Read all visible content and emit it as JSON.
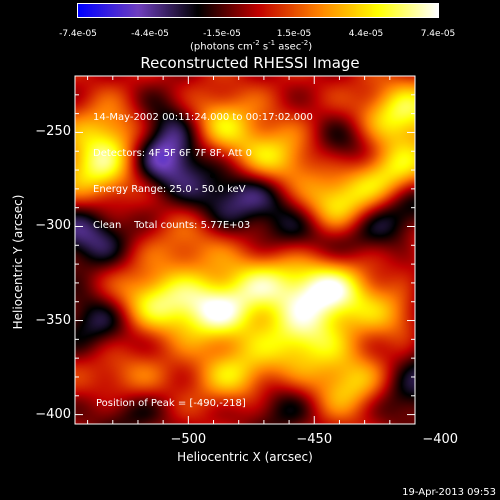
{
  "colorbar": {
    "tick_labels": [
      "-7.4e-05",
      "-4.4e-05",
      "-1.5e-05",
      "1.5e-05",
      "4.4e-05",
      "7.4e-05"
    ],
    "unit_label": "(photons cm",
    "unit_sup1": "-2",
    "unit_mid": " s",
    "unit_sup2": "-1",
    "unit_tail": " asec",
    "unit_sup3": "-2",
    "unit_close": ")"
  },
  "info": {
    "line1": "14-May-2002 00:11:24.000 to 00:17:02.000",
    "line2": "Detectors: 4F 5F 6F 7F 8F, Att 0",
    "line3": "Energy Range: 25.0 - 50.0 keV",
    "line4": "Clean    Total counts: 5.77E+03",
    "peak": "Position of Peak = [-490,-218]"
  },
  "footer": {
    "timestamp": "19-Apr-2013 09:53"
  },
  "chart_data": {
    "type": "heatmap",
    "title": "Reconstructed RHESSI Image",
    "xlabel": "Heliocentric X (arcsec)",
    "ylabel": "Heliocentric Y (arcsec)",
    "xlim": [
      -545,
      -410
    ],
    "ylim": [
      -405,
      -220
    ],
    "x_ticks": [
      -500,
      -450,
      -400
    ],
    "y_ticks": [
      -250,
      -300,
      -350,
      -400
    ],
    "x_tick_labels": [
      "−500",
      "−450",
      "−400"
    ],
    "y_tick_labels": [
      "−250",
      "−300",
      "−350",
      "−400"
    ],
    "color_range": [
      -7.4e-05,
      7.4e-05
    ],
    "colormap": [
      "#0000ff",
      "#7040c0",
      "#000000",
      "#c00000",
      "#ff8000",
      "#ffff00",
      "#ffffff"
    ],
    "peak_position": [
      -490,
      -218
    ],
    "sources": [
      {
        "x": -440,
        "y": -290,
        "v": 1.0
      },
      {
        "x": -445,
        "y": -335,
        "v": 0.95
      },
      {
        "x": -490,
        "y": -345,
        "v": 0.85
      },
      {
        "x": -515,
        "y": -340,
        "v": 0.7
      },
      {
        "x": -470,
        "y": -330,
        "v": 0.6
      },
      {
        "x": -420,
        "y": -270,
        "v": 0.8
      },
      {
        "x": -415,
        "y": -240,
        "v": 0.75
      },
      {
        "x": -490,
        "y": -245,
        "v": 0.75
      },
      {
        "x": -465,
        "y": -265,
        "v": 0.7
      },
      {
        "x": -535,
        "y": -270,
        "v": 0.7
      },
      {
        "x": -530,
        "y": -250,
        "v": 0.55
      },
      {
        "x": -455,
        "y": -360,
        "v": 0.7
      },
      {
        "x": -480,
        "y": -380,
        "v": 0.6
      },
      {
        "x": -525,
        "y": -385,
        "v": 0.55
      },
      {
        "x": -435,
        "y": -385,
        "v": 0.65
      },
      {
        "x": -415,
        "y": -345,
        "v": 0.5
      },
      {
        "x": -400,
        "y": -310,
        "v": 0.45
      },
      {
        "x": -500,
        "y": -310,
        "v": 0.3
      },
      {
        "x": -510,
        "y": -265,
        "v": -0.7
      },
      {
        "x": -505,
        "y": -245,
        "v": -0.6
      },
      {
        "x": -435,
        "y": -260,
        "v": -0.5
      },
      {
        "x": -430,
        "y": -300,
        "v": -0.55
      },
      {
        "x": -455,
        "y": -300,
        "v": -0.45
      },
      {
        "x": -410,
        "y": -290,
        "v": -0.5
      },
      {
        "x": -400,
        "y": -335,
        "v": -0.6
      },
      {
        "x": -395,
        "y": -365,
        "v": -0.55
      },
      {
        "x": -415,
        "y": -390,
        "v": -0.45
      },
      {
        "x": -540,
        "y": -305,
        "v": -0.55
      },
      {
        "x": -535,
        "y": -350,
        "v": -0.5
      },
      {
        "x": -525,
        "y": -395,
        "v": -0.55
      },
      {
        "x": -465,
        "y": -395,
        "v": -0.4
      },
      {
        "x": -470,
        "y": -280,
        "v": -0.35
      },
      {
        "x": -485,
        "y": -285,
        "v": -0.4
      }
    ]
  }
}
